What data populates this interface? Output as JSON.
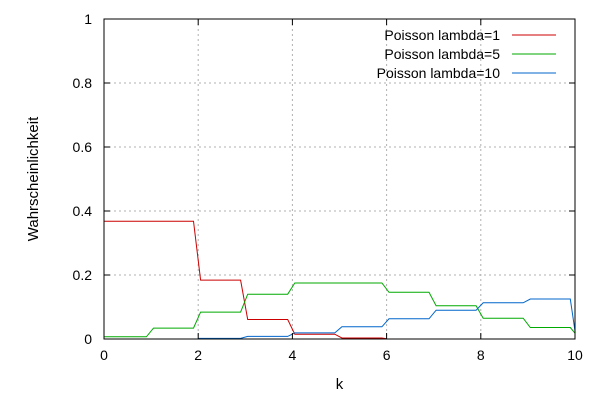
{
  "chart_data": {
    "type": "line",
    "title": "",
    "xlabel": "k",
    "ylabel": "Wahrscheinlichkeit",
    "xlim": [
      0,
      10
    ],
    "ylim": [
      0,
      1
    ],
    "grid": true,
    "legend_position": "top-right",
    "x_ticks": [
      {
        "value": 0,
        "label": "0"
      },
      {
        "value": 2,
        "label": "2"
      },
      {
        "value": 4,
        "label": "4"
      },
      {
        "value": 6,
        "label": "6"
      },
      {
        "value": 8,
        "label": "8"
      },
      {
        "value": 10,
        "label": "10"
      }
    ],
    "y_ticks": [
      {
        "value": 0,
        "label": "0"
      },
      {
        "value": 0.2,
        "label": "0.2"
      },
      {
        "value": 0.4,
        "label": "0.4"
      },
      {
        "value": 0.6,
        "label": "0.6"
      },
      {
        "value": 0.8,
        "label": "0.8"
      },
      {
        "value": 1,
        "label": "1"
      }
    ],
    "series": [
      {
        "name": "Poisson lambda=1",
        "color": "#cc0000",
        "x": [
          0,
          1.9,
          2.05,
          2.9,
          3.05,
          3.9,
          4.05,
          4.9,
          5.05,
          5.9,
          6
        ],
        "y": [
          0.368,
          0.368,
          0.184,
          0.184,
          0.061,
          0.061,
          0.015,
          0.015,
          0.003,
          0.003,
          0.0005
        ]
      },
      {
        "name": "Poisson lambda=5",
        "color": "#00aa00",
        "x": [
          0,
          0.9,
          1.05,
          1.9,
          2.05,
          2.9,
          3.05,
          3.9,
          4.05,
          5.9,
          6.05,
          6.9,
          7.05,
          7.9,
          8.05,
          8.9,
          9.05,
          9.9,
          10
        ],
        "y": [
          0.007,
          0.007,
          0.034,
          0.034,
          0.084,
          0.084,
          0.14,
          0.14,
          0.175,
          0.175,
          0.146,
          0.146,
          0.104,
          0.104,
          0.065,
          0.065,
          0.036,
          0.036,
          0.018
        ]
      },
      {
        "name": "Poisson lambda=10",
        "color": "#0066cc",
        "x": [
          2,
          2.9,
          3.05,
          3.9,
          4.05,
          4.9,
          5.05,
          5.9,
          6.05,
          6.9,
          7.05,
          7.9,
          8.05,
          8.9,
          9.05,
          9.9,
          10
        ],
        "y": [
          0.002,
          0.002,
          0.008,
          0.008,
          0.019,
          0.019,
          0.038,
          0.038,
          0.063,
          0.063,
          0.09,
          0.09,
          0.113,
          0.113,
          0.125,
          0.125,
          0.025
        ]
      }
    ]
  }
}
